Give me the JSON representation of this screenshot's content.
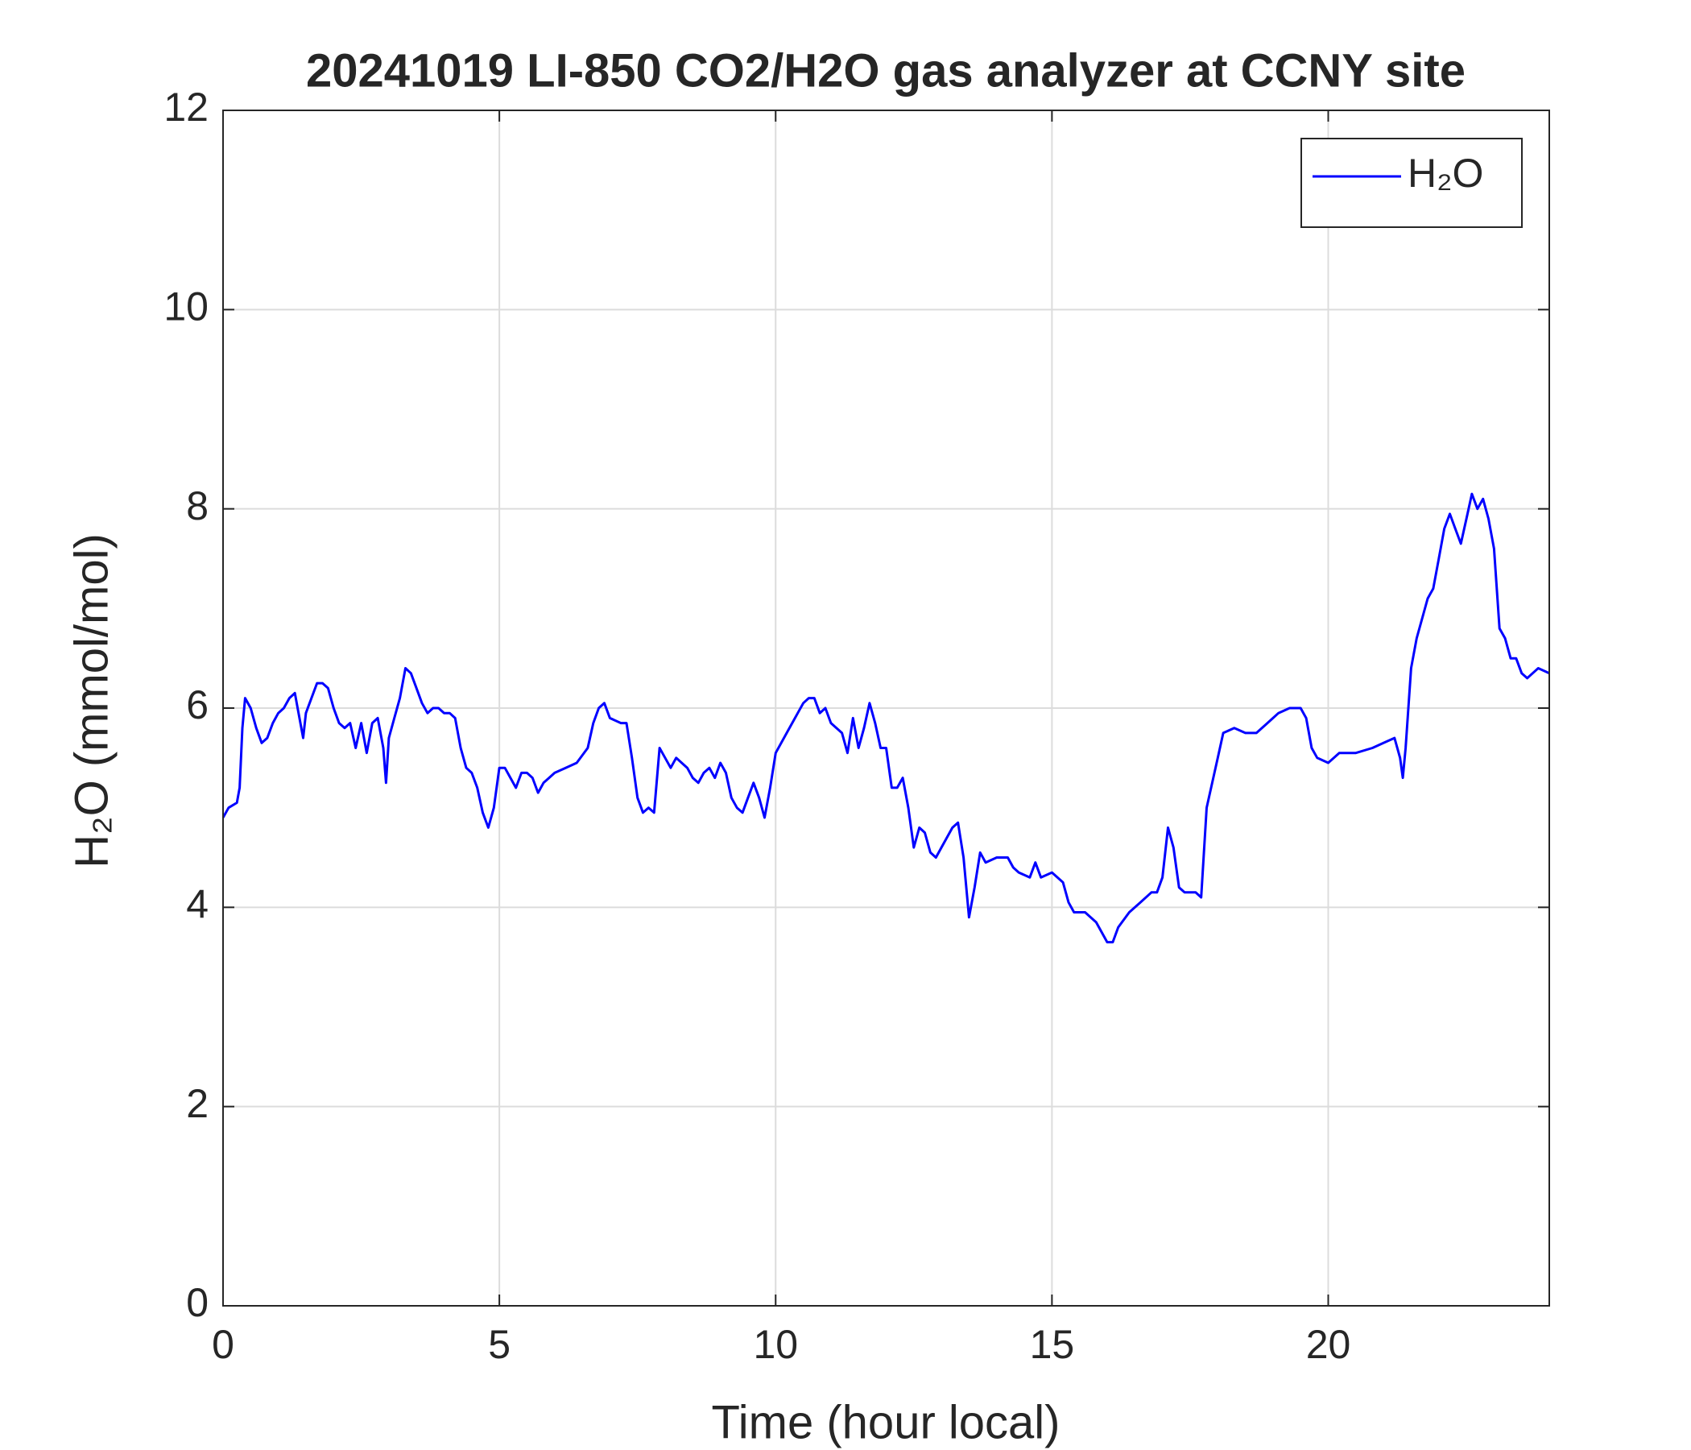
{
  "chart_data": {
    "type": "line",
    "title": "20241019 LI-850 CO2/H2O gas analyzer at CCNY site",
    "xlabel": "Time (hour local)",
    "ylabel": "H₂O (mmol/mol)",
    "xlim": [
      0,
      24
    ],
    "xticks": [
      0,
      5,
      10,
      15,
      20
    ],
    "ylim": [
      0,
      12
    ],
    "yticks": [
      0,
      2,
      4,
      6,
      8,
      10,
      12
    ],
    "grid": true,
    "legend": "upper right",
    "x": [
      0,
      0.1,
      0.25,
      0.3,
      0.35,
      0.4,
      0.5,
      0.6,
      0.7,
      0.8,
      0.9,
      1.0,
      1.1,
      1.2,
      1.3,
      1.35,
      1.45,
      1.5,
      1.6,
      1.7,
      1.8,
      1.9,
      2.0,
      2.1,
      2.2,
      2.3,
      2.4,
      2.5,
      2.6,
      2.7,
      2.8,
      2.9,
      2.95,
      3.0,
      3.1,
      3.2,
      3.3,
      3.4,
      3.5,
      3.6,
      3.7,
      3.8,
      3.9,
      4.0,
      4.1,
      4.2,
      4.3,
      4.4,
      4.5,
      4.6,
      4.7,
      4.8,
      4.9,
      5.0,
      5.1,
      5.2,
      5.3,
      5.4,
      5.5,
      5.6,
      5.7,
      5.8,
      5.9,
      6.0,
      6.2,
      6.4,
      6.6,
      6.7,
      6.8,
      6.9,
      7.0,
      7.2,
      7.3,
      7.4,
      7.5,
      7.6,
      7.7,
      7.8,
      7.9,
      8.0,
      8.1,
      8.2,
      8.4,
      8.5,
      8.6,
      8.7,
      8.8,
      8.9,
      9.0,
      9.1,
      9.2,
      9.3,
      9.4,
      9.5,
      9.6,
      9.7,
      9.8,
      9.9,
      10.0,
      10.2,
      10.4,
      10.5,
      10.6,
      10.7,
      10.8,
      10.9,
      11.0,
      11.2,
      11.3,
      11.4,
      11.5,
      11.6,
      11.7,
      11.8,
      11.9,
      12.0,
      12.1,
      12.2,
      12.3,
      12.4,
      12.5,
      12.6,
      12.7,
      12.8,
      12.9,
      13.0,
      13.2,
      13.3,
      13.4,
      13.5,
      13.6,
      13.7,
      13.8,
      14.0,
      14.2,
      14.3,
      14.4,
      14.6,
      14.7,
      14.8,
      15.0,
      15.2,
      15.3,
      15.4,
      15.6,
      15.8,
      16.0,
      16.1,
      16.2,
      16.4,
      16.6,
      16.8,
      16.9,
      17.0,
      17.1,
      17.2,
      17.3,
      17.4,
      17.6,
      17.7,
      17.8,
      18.0,
      18.1,
      18.3,
      18.5,
      18.7,
      18.9,
      19.1,
      19.3,
      19.5,
      19.6,
      19.7,
      19.8,
      20.0,
      20.2,
      20.5,
      20.8,
      21.0,
      21.2,
      21.3,
      21.35,
      21.4,
      21.5,
      21.6,
      21.8,
      21.9,
      22.0,
      22.1,
      22.2,
      22.3,
      22.4,
      22.5,
      22.6,
      22.7,
      22.8,
      22.9,
      23.0,
      23.1,
      23.2,
      23.3,
      23.4,
      23.5,
      23.6,
      23.7,
      23.8,
      24.0
    ],
    "series": [
      {
        "name": "H₂O",
        "color": "#0000ff",
        "values": [
          4.9,
          5.0,
          5.05,
          5.2,
          5.8,
          6.1,
          6.0,
          5.8,
          5.65,
          5.7,
          5.85,
          5.95,
          6.0,
          6.1,
          6.15,
          6.0,
          5.7,
          5.95,
          6.1,
          6.25,
          6.25,
          6.2,
          6.0,
          5.85,
          5.8,
          5.85,
          5.6,
          5.85,
          5.55,
          5.85,
          5.9,
          5.6,
          5.25,
          5.7,
          5.9,
          6.1,
          6.4,
          6.35,
          6.2,
          6.05,
          5.95,
          6.0,
          6.0,
          5.95,
          5.95,
          5.9,
          5.6,
          5.4,
          5.35,
          5.2,
          4.95,
          4.8,
          5.0,
          5.4,
          5.4,
          5.3,
          5.2,
          5.35,
          5.35,
          5.3,
          5.15,
          5.25,
          5.3,
          5.35,
          5.4,
          5.45,
          5.6,
          5.85,
          6.0,
          6.05,
          5.9,
          5.85,
          5.85,
          5.5,
          5.1,
          4.95,
          5.0,
          4.95,
          5.6,
          5.5,
          5.4,
          5.5,
          5.4,
          5.3,
          5.25,
          5.35,
          5.4,
          5.3,
          5.45,
          5.35,
          5.1,
          5.0,
          4.95,
          5.1,
          5.25,
          5.1,
          4.9,
          5.2,
          5.55,
          5.75,
          5.95,
          6.05,
          6.1,
          6.1,
          5.95,
          6.0,
          5.85,
          5.75,
          5.55,
          5.9,
          5.6,
          5.8,
          6.05,
          5.85,
          5.6,
          5.6,
          5.2,
          5.2,
          5.3,
          5.0,
          4.6,
          4.8,
          4.75,
          4.55,
          4.5,
          4.6,
          4.8,
          4.85,
          4.5,
          3.9,
          4.2,
          4.55,
          4.45,
          4.5,
          4.5,
          4.4,
          4.35,
          4.3,
          4.45,
          4.3,
          4.35,
          4.25,
          4.05,
          3.95,
          3.95,
          3.85,
          3.65,
          3.65,
          3.8,
          3.95,
          4.05,
          4.15,
          4.15,
          4.3,
          4.8,
          4.6,
          4.2,
          4.15,
          4.15,
          4.1,
          5.0,
          5.5,
          5.75,
          5.8,
          5.75,
          5.75,
          5.85,
          5.95,
          6.0,
          6.0,
          5.9,
          5.6,
          5.5,
          5.45,
          5.55,
          5.55,
          5.6,
          5.65,
          5.7,
          5.5,
          5.3,
          5.6,
          6.4,
          6.7,
          7.1,
          7.2,
          7.5,
          7.8,
          7.95,
          7.8,
          7.65,
          7.9,
          8.15,
          8.0,
          8.1,
          7.9,
          7.6,
          6.8,
          6.7,
          6.5,
          6.5,
          6.35,
          6.3,
          6.35,
          6.4,
          6.35
        ]
      }
    ]
  }
}
